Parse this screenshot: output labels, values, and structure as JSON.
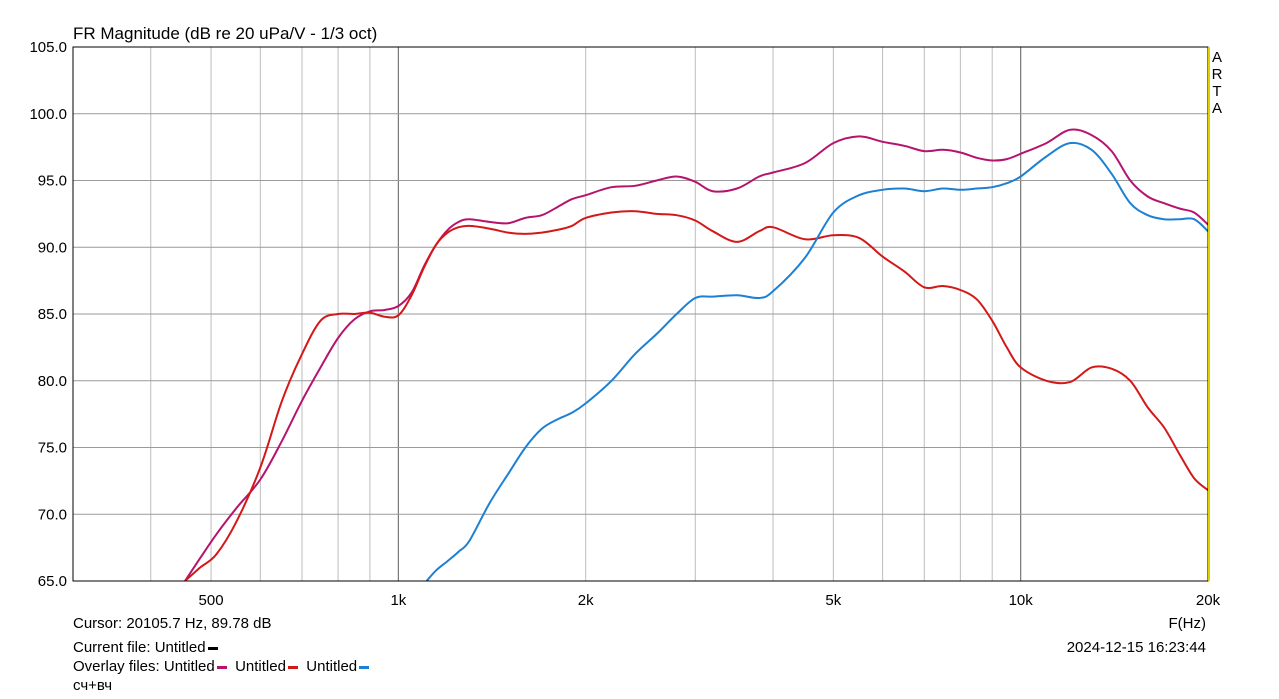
{
  "title": "FR Magnitude (dB re 20 uPa/V - 1/3 oct)",
  "watermark": "ARTA",
  "footer": {
    "cursor": "Cursor: 20105.7 Hz, 89.78 dB",
    "current_file_label": "Current file: Untitled",
    "overlay_label": "Overlay files:",
    "overlay_names": [
      "Untitled",
      "Untitled",
      "Untitled"
    ],
    "note": "сч+вч",
    "timestamp": "2024-12-15   16:23:44"
  },
  "chart_data": {
    "type": "line",
    "title": "FR Magnitude (dB re 20 uPa/V - 1/3 oct)",
    "xlabel": "F(Hz)",
    "ylabel": "",
    "x_scale": "log",
    "xlim": [
      300,
      20000
    ],
    "ylim": [
      65,
      105
    ],
    "grid": true,
    "x_tick_labels": [
      {
        "value": 500,
        "label": "500"
      },
      {
        "value": 1000,
        "label": "1k"
      },
      {
        "value": 2000,
        "label": "2k"
      },
      {
        "value": 5000,
        "label": "5k"
      },
      {
        "value": 10000,
        "label": "10k"
      },
      {
        "value": 20000,
        "label": "20k"
      }
    ],
    "y_ticks": [
      65.0,
      70.0,
      75.0,
      80.0,
      85.0,
      90.0,
      95.0,
      100.0,
      105.0
    ],
    "y_tick_labels": [
      "65.0",
      "70.0",
      "75.0",
      "80.0",
      "85.0",
      "90.0",
      "95.0",
      "100.0",
      "105.0"
    ],
    "series": [
      {
        "color": "#b5146e",
        "x": [
          454,
          480,
          510,
          550,
          600,
          650,
          700,
          750,
          800,
          850,
          900,
          950,
          1000,
          1050,
          1100,
          1150,
          1200,
          1250,
          1300,
          1400,
          1500,
          1600,
          1700,
          1800,
          1900,
          2000,
          2200,
          2400,
          2600,
          2800,
          3000,
          3200,
          3500,
          3800,
          4000,
          4500,
          5000,
          5500,
          6000,
          6500,
          7000,
          7500,
          8000,
          8500,
          9000,
          9500,
          10000,
          11000,
          12000,
          13000,
          14000,
          15000,
          16000,
          17000,
          18000,
          19000,
          20000
        ],
        "y": [
          65.0,
          66.7,
          68.5,
          70.5,
          72.6,
          75.5,
          78.5,
          81.0,
          83.2,
          84.6,
          85.2,
          85.3,
          85.6,
          86.6,
          88.6,
          90.2,
          91.3,
          91.9,
          92.1,
          91.9,
          91.8,
          92.2,
          92.4,
          93.0,
          93.6,
          93.9,
          94.5,
          94.6,
          95.0,
          95.3,
          94.9,
          94.2,
          94.4,
          95.3,
          95.6,
          96.3,
          97.8,
          98.3,
          97.9,
          97.6,
          97.2,
          97.3,
          97.1,
          96.7,
          96.5,
          96.6,
          97.0,
          97.8,
          98.8,
          98.4,
          97.2,
          95.0,
          93.8,
          93.3,
          92.9,
          92.6,
          91.7
        ]
      },
      {
        "color": "#d41818",
        "x": [
          454,
          480,
          510,
          550,
          600,
          650,
          700,
          750,
          800,
          850,
          900,
          950,
          1000,
          1050,
          1100,
          1150,
          1200,
          1250,
          1300,
          1400,
          1500,
          1600,
          1700,
          1800,
          1900,
          2000,
          2200,
          2400,
          2600,
          2800,
          3000,
          3200,
          3500,
          3800,
          4000,
          4500,
          5000,
          5500,
          6000,
          6500,
          7000,
          7500,
          8000,
          8500,
          9000,
          9500,
          10000,
          11000,
          12000,
          13000,
          14000,
          15000,
          16000,
          17000,
          18000,
          19000,
          20000
        ],
        "y": [
          65.0,
          66.0,
          67.0,
          69.5,
          73.5,
          78.5,
          82.0,
          84.5,
          85.0,
          85.0,
          85.1,
          84.8,
          84.9,
          86.4,
          88.5,
          90.2,
          91.1,
          91.5,
          91.6,
          91.4,
          91.1,
          91.0,
          91.1,
          91.3,
          91.6,
          92.2,
          92.6,
          92.7,
          92.5,
          92.4,
          92.0,
          91.2,
          90.4,
          91.2,
          91.5,
          90.6,
          90.9,
          90.7,
          89.3,
          88.2,
          87.0,
          87.1,
          86.8,
          86.1,
          84.5,
          82.5,
          81.0,
          80.0,
          79.9,
          81.0,
          80.9,
          80.0,
          78.0,
          76.5,
          74.5,
          72.7,
          71.8
        ]
      },
      {
        "color": "#1c80d4",
        "x": [
          1110,
          1150,
          1200,
          1250,
          1300,
          1400,
          1500,
          1600,
          1700,
          1800,
          1900,
          2000,
          2200,
          2400,
          2600,
          2800,
          3000,
          3200,
          3500,
          3800,
          4000,
          4500,
          5000,
          5500,
          6000,
          6500,
          7000,
          7500,
          8000,
          8500,
          9000,
          9500,
          10000,
          11000,
          12000,
          13000,
          14000,
          15000,
          16000,
          17000,
          18000,
          19000,
          20000
        ],
        "y": [
          65.0,
          65.8,
          66.5,
          67.2,
          68.0,
          70.8,
          73.0,
          75.0,
          76.4,
          77.1,
          77.6,
          78.3,
          80.0,
          82.0,
          83.5,
          85.0,
          86.2,
          86.3,
          86.4,
          86.2,
          86.7,
          89.2,
          92.6,
          93.9,
          94.3,
          94.4,
          94.2,
          94.4,
          94.3,
          94.4,
          94.5,
          94.8,
          95.3,
          96.8,
          97.8,
          97.3,
          95.5,
          93.3,
          92.4,
          92.1,
          92.1,
          92.1,
          91.2
        ]
      }
    ]
  }
}
